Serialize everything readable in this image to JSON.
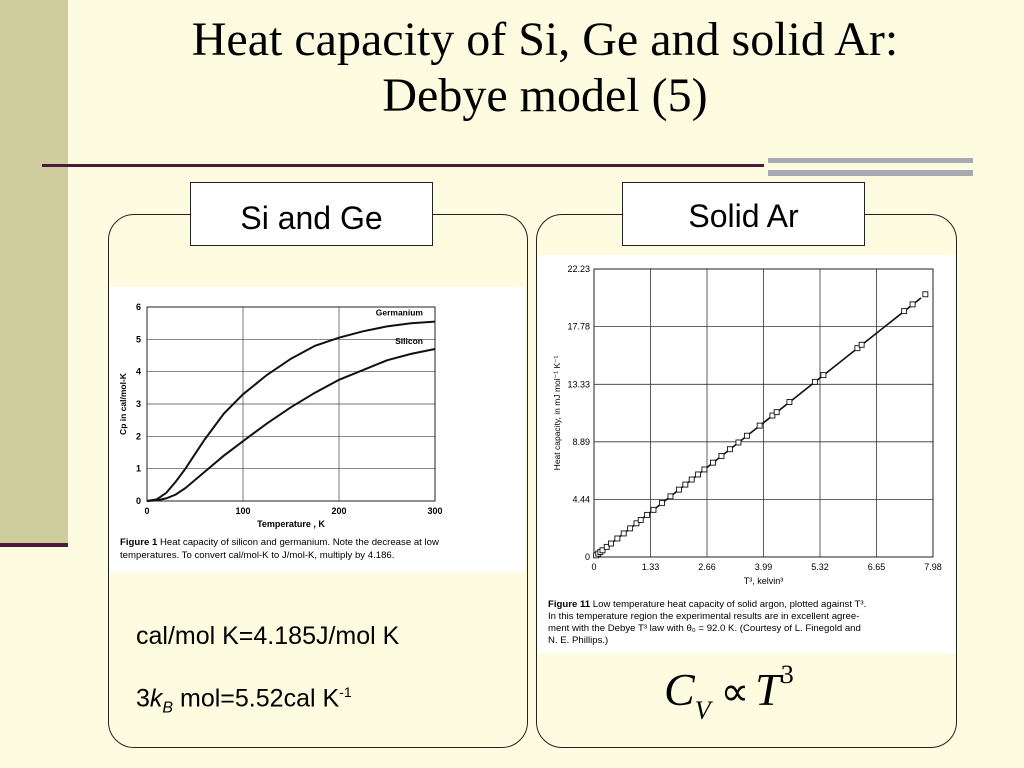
{
  "slide": {
    "title_line1": "Heat capacity of Si, Ge and solid Ar:",
    "title_line2": "Debye model (5)"
  },
  "left_panel": {
    "tab_label": "Si and Ge",
    "note1": "cal/mol K=4.185J/mol K",
    "note2_pre": "3",
    "note2_k": "k",
    "note2_sub": "B",
    "note2_post": " mol=5.52cal K",
    "note2_sup": "-1"
  },
  "right_panel": {
    "tab_label": "Solid Ar",
    "formula_c": "C",
    "formula_sub": "V",
    "formula_prop": "∝",
    "formula_t": "T",
    "formula_sup": "3"
  },
  "chart_data": [
    {
      "type": "line",
      "xlabel": "Temperature , K",
      "ylabel": "Cp in cal/mol-K",
      "xlim": [
        0,
        300
      ],
      "ylim": [
        0,
        6
      ],
      "xticks": [
        "0",
        "100",
        "200",
        "300"
      ],
      "yticks": [
        "0",
        "1",
        "2",
        "3",
        "4",
        "5",
        "6"
      ],
      "grid": true,
      "series": [
        {
          "name": "Germanium",
          "x": [
            0,
            10,
            20,
            30,
            40,
            50,
            60,
            80,
            100,
            125,
            150,
            175,
            200,
            225,
            250,
            275,
            300
          ],
          "y": [
            0,
            0.05,
            0.25,
            0.6,
            1.0,
            1.45,
            1.9,
            2.7,
            3.3,
            3.9,
            4.4,
            4.8,
            5.05,
            5.25,
            5.4,
            5.5,
            5.55
          ]
        },
        {
          "name": "Silicon",
          "x": [
            0,
            10,
            20,
            30,
            40,
            60,
            80,
            100,
            125,
            150,
            175,
            200,
            225,
            250,
            275,
            300
          ],
          "y": [
            0,
            0.02,
            0.08,
            0.2,
            0.4,
            0.9,
            1.4,
            1.85,
            2.4,
            2.9,
            3.35,
            3.75,
            4.05,
            4.35,
            4.55,
            4.7
          ]
        }
      ],
      "caption_label": "Figure 1",
      "caption_line1": "Heat capacity of silicon and germanium. Note the decrease at low",
      "caption_line2": "temperatures. To convert cal/mol-K to J/mol-K, multiply by 4.186."
    },
    {
      "type": "scatter",
      "xlabel": "T³, kelvin³",
      "ylabel": "Heat capacity, in mJ mol⁻¹ K⁻¹",
      "xlim": [
        0,
        7.98
      ],
      "ylim": [
        0,
        22.23
      ],
      "xticks": [
        "0",
        "1.33",
        "2.66",
        "3.99",
        "5.32",
        "6.65",
        "7.98"
      ],
      "yticks": [
        "0",
        "4.44",
        "8.89",
        "13.33",
        "17.78",
        "22.23"
      ],
      "grid": true,
      "fit_line": {
        "x": [
          0,
          7.7
        ],
        "y": [
          0,
          20.0
        ]
      },
      "points": {
        "x": [
          0.05,
          0.1,
          0.15,
          0.2,
          0.3,
          0.4,
          0.55,
          0.7,
          0.85,
          1.0,
          1.1,
          1.25,
          1.4,
          1.6,
          1.8,
          2.0,
          2.15,
          2.3,
          2.45,
          2.6,
          2.8,
          3.0,
          3.2,
          3.4,
          3.6,
          3.9,
          4.2,
          4.3,
          4.6,
          5.2,
          5.4,
          6.2,
          6.3,
          7.3,
          7.5,
          7.8
        ],
        "y": [
          0.13,
          0.26,
          0.39,
          0.52,
          0.78,
          1.04,
          1.43,
          1.82,
          2.21,
          2.6,
          2.86,
          3.25,
          3.64,
          4.16,
          4.68,
          5.2,
          5.59,
          5.98,
          6.37,
          6.76,
          7.28,
          7.8,
          8.32,
          8.84,
          9.36,
          10.14,
          10.92,
          11.18,
          11.96,
          13.52,
          14.04,
          16.12,
          16.38,
          18.98,
          19.5,
          20.28
        ]
      },
      "caption_label": "Figure 11",
      "caption_line1": "Low temperature heat capacity of solid argon, plotted against T³.",
      "caption_line2": "In this temperature region the experimental results are in excellent agree-",
      "caption_line3": "ment with the Debye T³ law with θ₀ = 92.0 K. (Courtesy of L. Finegold and",
      "caption_line4": "N. E. Phillips.)"
    }
  ]
}
